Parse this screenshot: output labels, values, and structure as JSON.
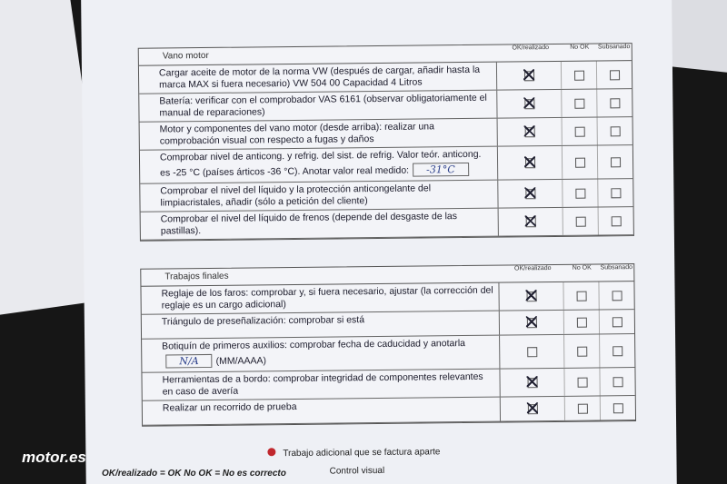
{
  "sections": [
    {
      "title": "Vano motor",
      "columns": [
        "OK/realizado",
        "No OK",
        "Subsanado"
      ],
      "rows": [
        {
          "text": "Cargar aceite de motor de la norma VW (después de cargar, añadir hasta la marca MAX si fuera necesario) VW 504 00 Capacidad 4 Litros",
          "checked": true
        },
        {
          "text": "Batería: verificar con el comprobador VAS 6161 (observar obligatoriamente el manual de reparaciones)",
          "checked": true
        },
        {
          "text": "Motor y componentes del vano motor (desde arriba): realizar una comprobación visual con respecto a fugas y daños",
          "checked": true
        },
        {
          "text": "Comprobar nivel de anticong. y refrig. del sist. de refrig. Valor teór. anticong. es -25 °C (países árticos -36 °C). Anotar valor real medido:",
          "handwritten": "-31°C",
          "checked": true
        },
        {
          "text": "Comprobar el nivel del líquido y la protección anticongelante del limpiacristales, añadir (sólo a petición del cliente)",
          "checked": true
        },
        {
          "text": "Comprobar el nivel del líquido de frenos (depende del desgaste de las pastillas).",
          "checked": true
        }
      ]
    },
    {
      "title": "Trabajos finales",
      "columns": [
        "OK/realizado",
        "No OK",
        "Subsanado"
      ],
      "rows": [
        {
          "text": "Reglaje de los faros: comprobar y, si fuera necesario, ajustar (la corrección del reglaje es un cargo adicional)",
          "checked": true
        },
        {
          "text": "Triángulo de preseñalización: comprobar si está",
          "checked": true
        },
        {
          "text": "Botiquín de primeros auxilios: comprobar fecha de caducidad y anotarla",
          "handwritten": "N/A",
          "suffix": "(MM/AAAA)",
          "checked": false
        },
        {
          "text": "Herramientas de a bordo: comprobar integridad de componentes relevantes en caso de avería",
          "checked": true
        },
        {
          "text": "Realizar un recorrido de prueba",
          "checked": true
        }
      ]
    }
  ],
  "footer": {
    "legend_extra": "Trabajo adicional que se factura aparte",
    "legend_visual": "Control visual",
    "abbrev": "OK/realizado = OK No OK = No es correcto"
  },
  "watermark": "motor.es"
}
